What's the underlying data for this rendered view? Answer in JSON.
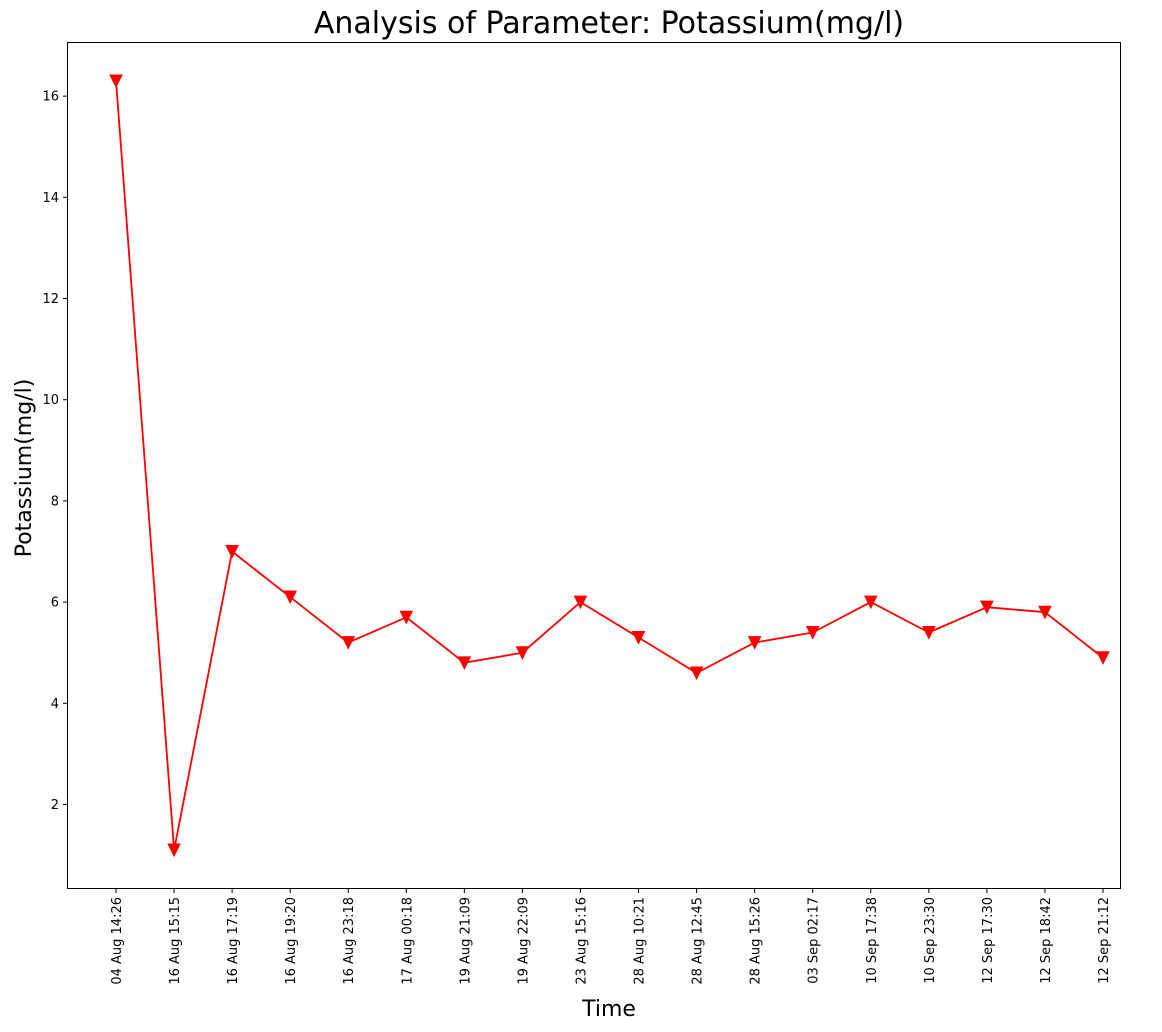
{
  "chart_data": {
    "type": "line",
    "title": "Analysis of Parameter: Potassium(mg/l)",
    "xlabel": "Time",
    "ylabel": "Potassium(mg/l)",
    "categories": [
      "04 Aug 14:26",
      "16 Aug 15:15",
      "16 Aug 17:19",
      "16 Aug 19:20",
      "16 Aug 23:18",
      "17 Aug 00:18",
      "19 Aug 21:09",
      "19 Aug 22:09",
      "23 Aug 15:16",
      "28 Aug 10:21",
      "28 Aug 12:45",
      "28 Aug 15:26",
      "03 Sep 02:17",
      "10 Sep 17:38",
      "10 Sep 23:30",
      "12 Sep 17:30",
      "12 Sep 18:42",
      "12 Sep 21:12"
    ],
    "values": [
      16.3,
      1.1,
      7.0,
      6.1,
      5.2,
      5.7,
      4.8,
      5.0,
      6.0,
      5.3,
      4.6,
      5.2,
      5.4,
      6.0,
      5.4,
      5.9,
      5.8,
      4.9
    ],
    "ylim": [
      0.35,
      17.05
    ],
    "yticks": [
      "2",
      "4",
      "6",
      "8",
      "10",
      "12",
      "14",
      "16"
    ],
    "grid": false,
    "line_color": "#ff0000",
    "marker": "triangle-down"
  }
}
